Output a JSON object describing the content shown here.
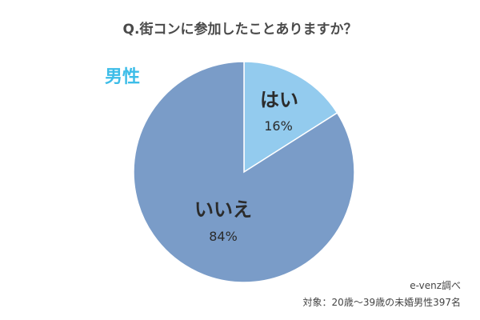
{
  "chart_data": {
    "type": "pie",
    "title": "Q.街コンに参加したことありますか？",
    "group_label": "男性",
    "categories": [
      "はい",
      "いいえ"
    ],
    "values": [
      16,
      84
    ],
    "value_labels": [
      "16%",
      "84%"
    ],
    "colors": [
      "#93cbee",
      "#7a9cc8"
    ],
    "start": "12 o'clock",
    "direction": "clockwise",
    "legend": "none"
  },
  "colors": {
    "group_label": "#3dbde8",
    "slice_border": "#ffffff"
  },
  "notes": {
    "source": "e-venz調べ",
    "target": "対象：20歳〜39歳の未婚男性397名"
  }
}
